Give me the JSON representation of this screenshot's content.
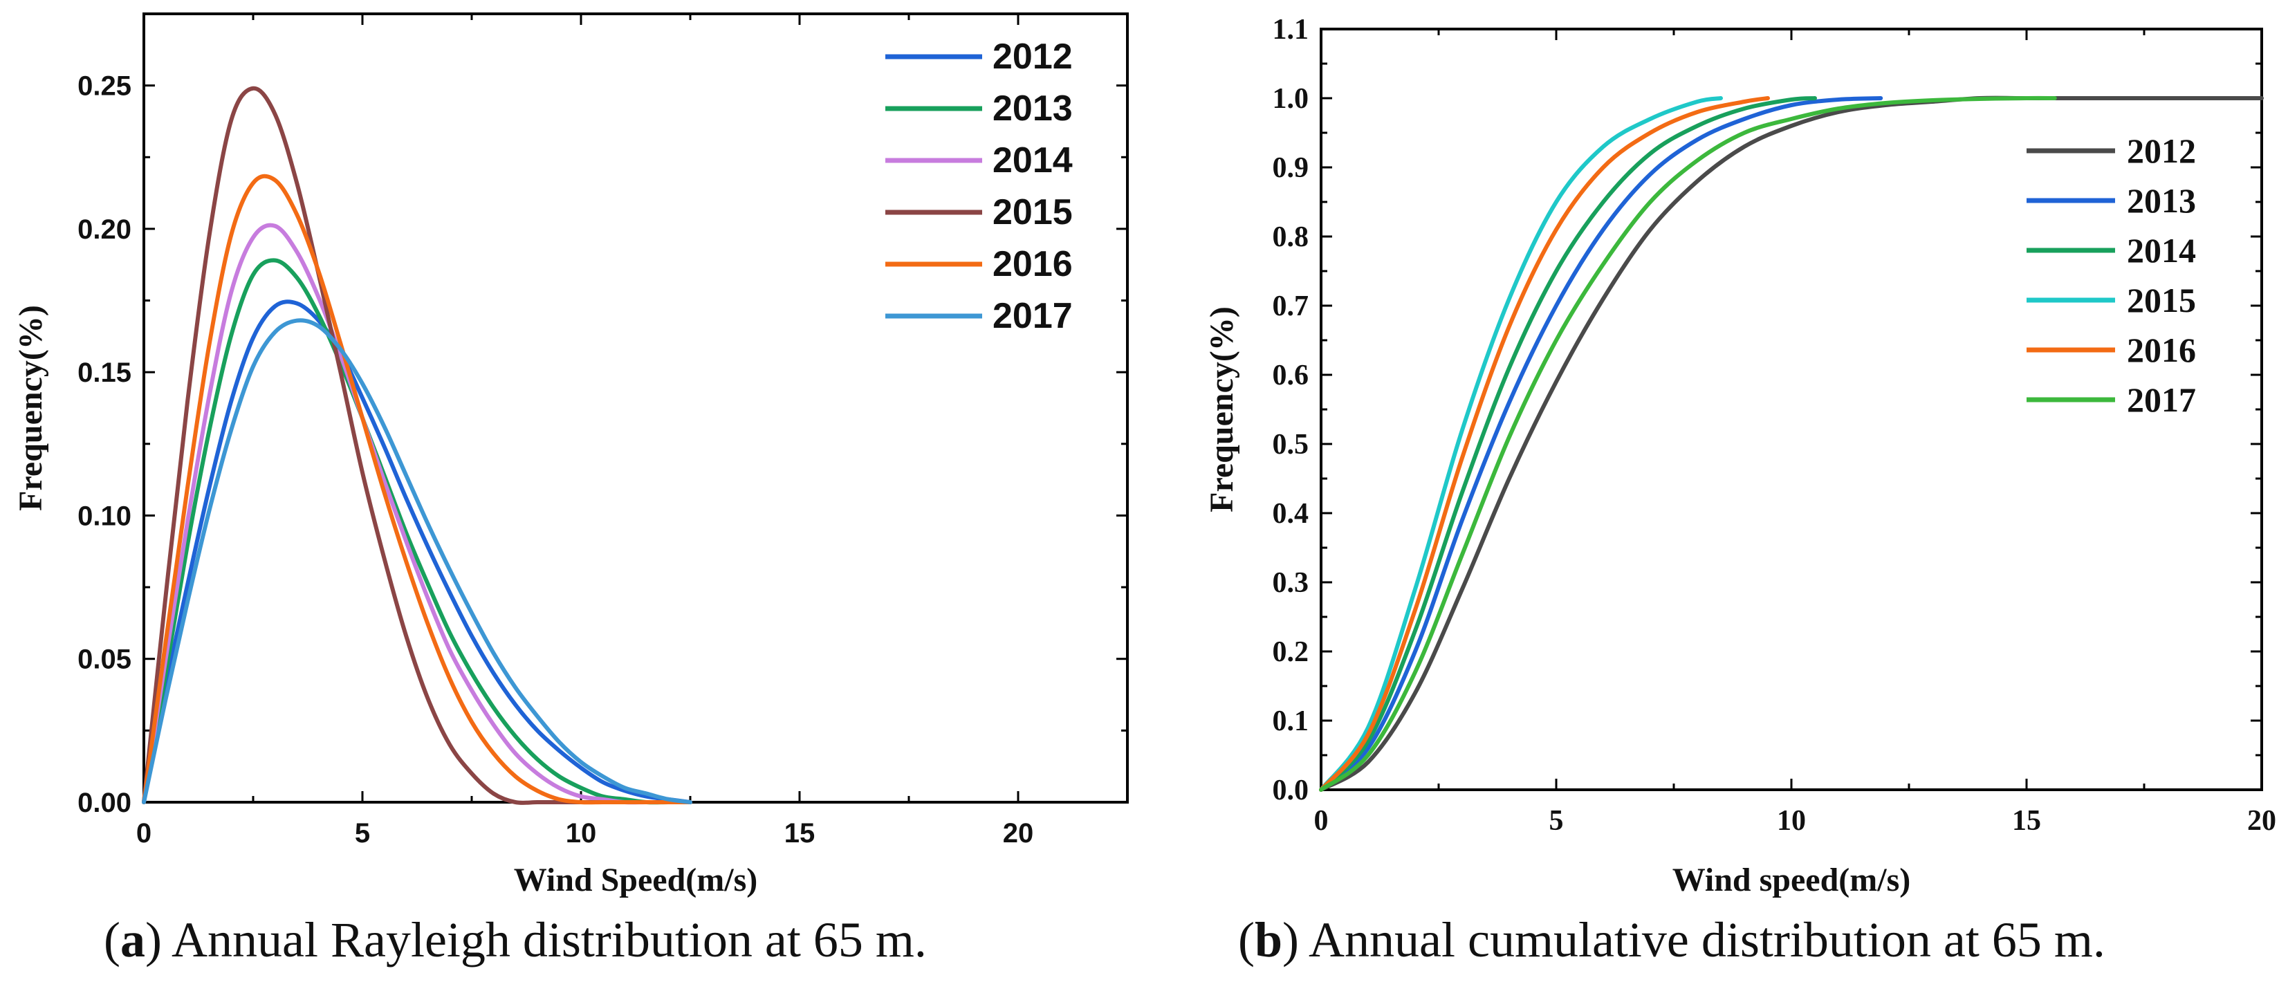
{
  "captions": {
    "a_label": "a",
    "a_text": "Annual Rayleigh distribution at 65 m.",
    "b_label": "b",
    "b_text": "Annual cumulative distribution at 65 m."
  },
  "chart_data": [
    {
      "id": "a",
      "type": "line",
      "title": "",
      "xlabel": "Wind Speed(m/s)",
      "ylabel": "Frequency(%)",
      "xlim": [
        0,
        22.5
      ],
      "ylim": [
        0,
        0.275
      ],
      "xticks": [
        "0",
        "5",
        "10",
        "15",
        "20"
      ],
      "xtick_values": [
        0,
        5,
        10,
        15,
        20
      ],
      "yticks": [
        "0.00",
        "0.05",
        "0.10",
        "0.15",
        "0.20",
        "0.25"
      ],
      "ytick_values": [
        0,
        0.05,
        0.1,
        0.15,
        0.2,
        0.25
      ],
      "legend_position": "top-right",
      "x": [
        0,
        0.5,
        1,
        1.5,
        2,
        2.5,
        3,
        3.5,
        4,
        4.5,
        5,
        5.5,
        6,
        6.5,
        7,
        7.5,
        8,
        8.5,
        9,
        9.5,
        10,
        10.5,
        11,
        11.5,
        12,
        12.5
      ],
      "series": [
        {
          "name": "2012",
          "color": "#1f63d6",
          "values": [
            0.0,
            0.04,
            0.076,
            0.11,
            0.14,
            0.162,
            0.173,
            0.174,
            0.168,
            0.157,
            0.141,
            0.124,
            0.106,
            0.089,
            0.073,
            0.058,
            0.045,
            0.034,
            0.025,
            0.018,
            0.012,
            0.007,
            0.004,
            0.002,
            0.001,
            0.0
          ]
        },
        {
          "name": "2013",
          "color": "#18a05c",
          "values": [
            0.0,
            0.045,
            0.09,
            0.13,
            0.163,
            0.184,
            0.189,
            0.183,
            0.17,
            0.153,
            0.134,
            0.114,
            0.094,
            0.076,
            0.059,
            0.045,
            0.033,
            0.023,
            0.015,
            0.009,
            0.005,
            0.002,
            0.001,
            0.0,
            0.0,
            0.0
          ]
        },
        {
          "name": "2014",
          "color": "#c77cde",
          "values": [
            0.0,
            0.05,
            0.098,
            0.142,
            0.178,
            0.197,
            0.201,
            0.192,
            0.176,
            0.156,
            0.134,
            0.112,
            0.091,
            0.071,
            0.053,
            0.039,
            0.027,
            0.017,
            0.01,
            0.005,
            0.002,
            0.001,
            0.0,
            0.0,
            0.0,
            0.0
          ]
        },
        {
          "name": "2015",
          "color": "#8b4545",
          "values": [
            0.0,
            0.072,
            0.14,
            0.198,
            0.238,
            0.249,
            0.24,
            0.216,
            0.184,
            0.15,
            0.115,
            0.085,
            0.058,
            0.036,
            0.02,
            0.01,
            0.003,
            0.0,
            0.0,
            0.0,
            0.0,
            0.0,
            0.0,
            0.0,
            0.0,
            0.0
          ]
        },
        {
          "name": "2016",
          "color": "#f36b14",
          "values": [
            0.0,
            0.056,
            0.11,
            0.16,
            0.198,
            0.216,
            0.217,
            0.205,
            0.185,
            0.16,
            0.134,
            0.108,
            0.084,
            0.062,
            0.043,
            0.028,
            0.017,
            0.009,
            0.004,
            0.001,
            0.0,
            0.0,
            0.0,
            0.0,
            0.0,
            0.0
          ]
        },
        {
          "name": "2017",
          "color": "#3d97d4",
          "values": [
            0.0,
            0.036,
            0.07,
            0.102,
            0.13,
            0.152,
            0.164,
            0.168,
            0.166,
            0.158,
            0.146,
            0.131,
            0.114,
            0.097,
            0.081,
            0.066,
            0.052,
            0.04,
            0.03,
            0.021,
            0.014,
            0.009,
            0.005,
            0.003,
            0.001,
            0.0
          ]
        }
      ]
    },
    {
      "id": "b",
      "type": "line",
      "title": "",
      "xlabel": "Wind speed(m/s)",
      "ylabel": "Frequency(%)",
      "xlim": [
        0,
        20
      ],
      "ylim": [
        0,
        1.1
      ],
      "xticks": [
        "0",
        "5",
        "10",
        "15",
        "20"
      ],
      "xtick_values": [
        0,
        5,
        10,
        15,
        20
      ],
      "yticks": [
        "0.0",
        "0.1",
        "0.2",
        "0.3",
        "0.4",
        "0.5",
        "0.6",
        "0.7",
        "0.8",
        "0.9",
        "1.0",
        "1.1"
      ],
      "ytick_values": [
        0,
        0.1,
        0.2,
        0.3,
        0.4,
        0.5,
        0.6,
        0.7,
        0.8,
        0.9,
        1.0,
        1.1
      ],
      "legend_position": "right",
      "series": [
        {
          "name": "2012",
          "color": "#4a4a4a",
          "x": [
            0,
            1,
            2,
            3,
            4,
            5,
            6,
            7,
            8,
            9,
            10,
            11,
            12,
            13,
            14,
            15,
            16,
            17,
            18,
            19,
            20
          ],
          "values": [
            0.0,
            0.04,
            0.14,
            0.29,
            0.45,
            0.59,
            0.71,
            0.81,
            0.88,
            0.93,
            0.96,
            0.98,
            0.99,
            0.995,
            1.0,
            1.0,
            1.0,
            1.0,
            1.0,
            1.0,
            1.0
          ]
        },
        {
          "name": "2013",
          "color": "#1f63d6",
          "x": [
            0,
            1,
            2,
            3,
            4,
            5,
            6,
            7,
            8,
            9,
            10,
            11,
            11.9
          ],
          "values": [
            0.0,
            0.06,
            0.2,
            0.39,
            0.56,
            0.7,
            0.81,
            0.89,
            0.94,
            0.97,
            0.99,
            0.998,
            1.0
          ]
        },
        {
          "name": "2014",
          "color": "#18a05c",
          "x": [
            0,
            1,
            2,
            3,
            4,
            5,
            6,
            7,
            8,
            9,
            10,
            10.5
          ],
          "values": [
            0.0,
            0.07,
            0.23,
            0.43,
            0.61,
            0.75,
            0.85,
            0.92,
            0.96,
            0.985,
            0.998,
            1.0
          ]
        },
        {
          "name": "2015",
          "color": "#1fc8c8",
          "x": [
            0,
            1,
            2,
            3,
            4,
            5,
            6,
            7,
            8,
            8.5
          ],
          "values": [
            0.0,
            0.09,
            0.29,
            0.52,
            0.71,
            0.85,
            0.93,
            0.97,
            0.995,
            1.0
          ]
        },
        {
          "name": "2016",
          "color": "#f36b14",
          "x": [
            0,
            1,
            2,
            3,
            4,
            5,
            6,
            7,
            8,
            9,
            9.5
          ],
          "values": [
            0.0,
            0.08,
            0.26,
            0.48,
            0.67,
            0.81,
            0.9,
            0.95,
            0.98,
            0.995,
            1.0
          ]
        },
        {
          "name": "2017",
          "color": "#3cb83c",
          "x": [
            0,
            1,
            2,
            3,
            4,
            5,
            6,
            7,
            8,
            9,
            10,
            11,
            12,
            13,
            14,
            15,
            15.6
          ],
          "values": [
            0.0,
            0.05,
            0.17,
            0.34,
            0.51,
            0.65,
            0.76,
            0.85,
            0.91,
            0.95,
            0.97,
            0.985,
            0.993,
            0.997,
            0.999,
            1.0,
            1.0
          ]
        }
      ]
    }
  ]
}
